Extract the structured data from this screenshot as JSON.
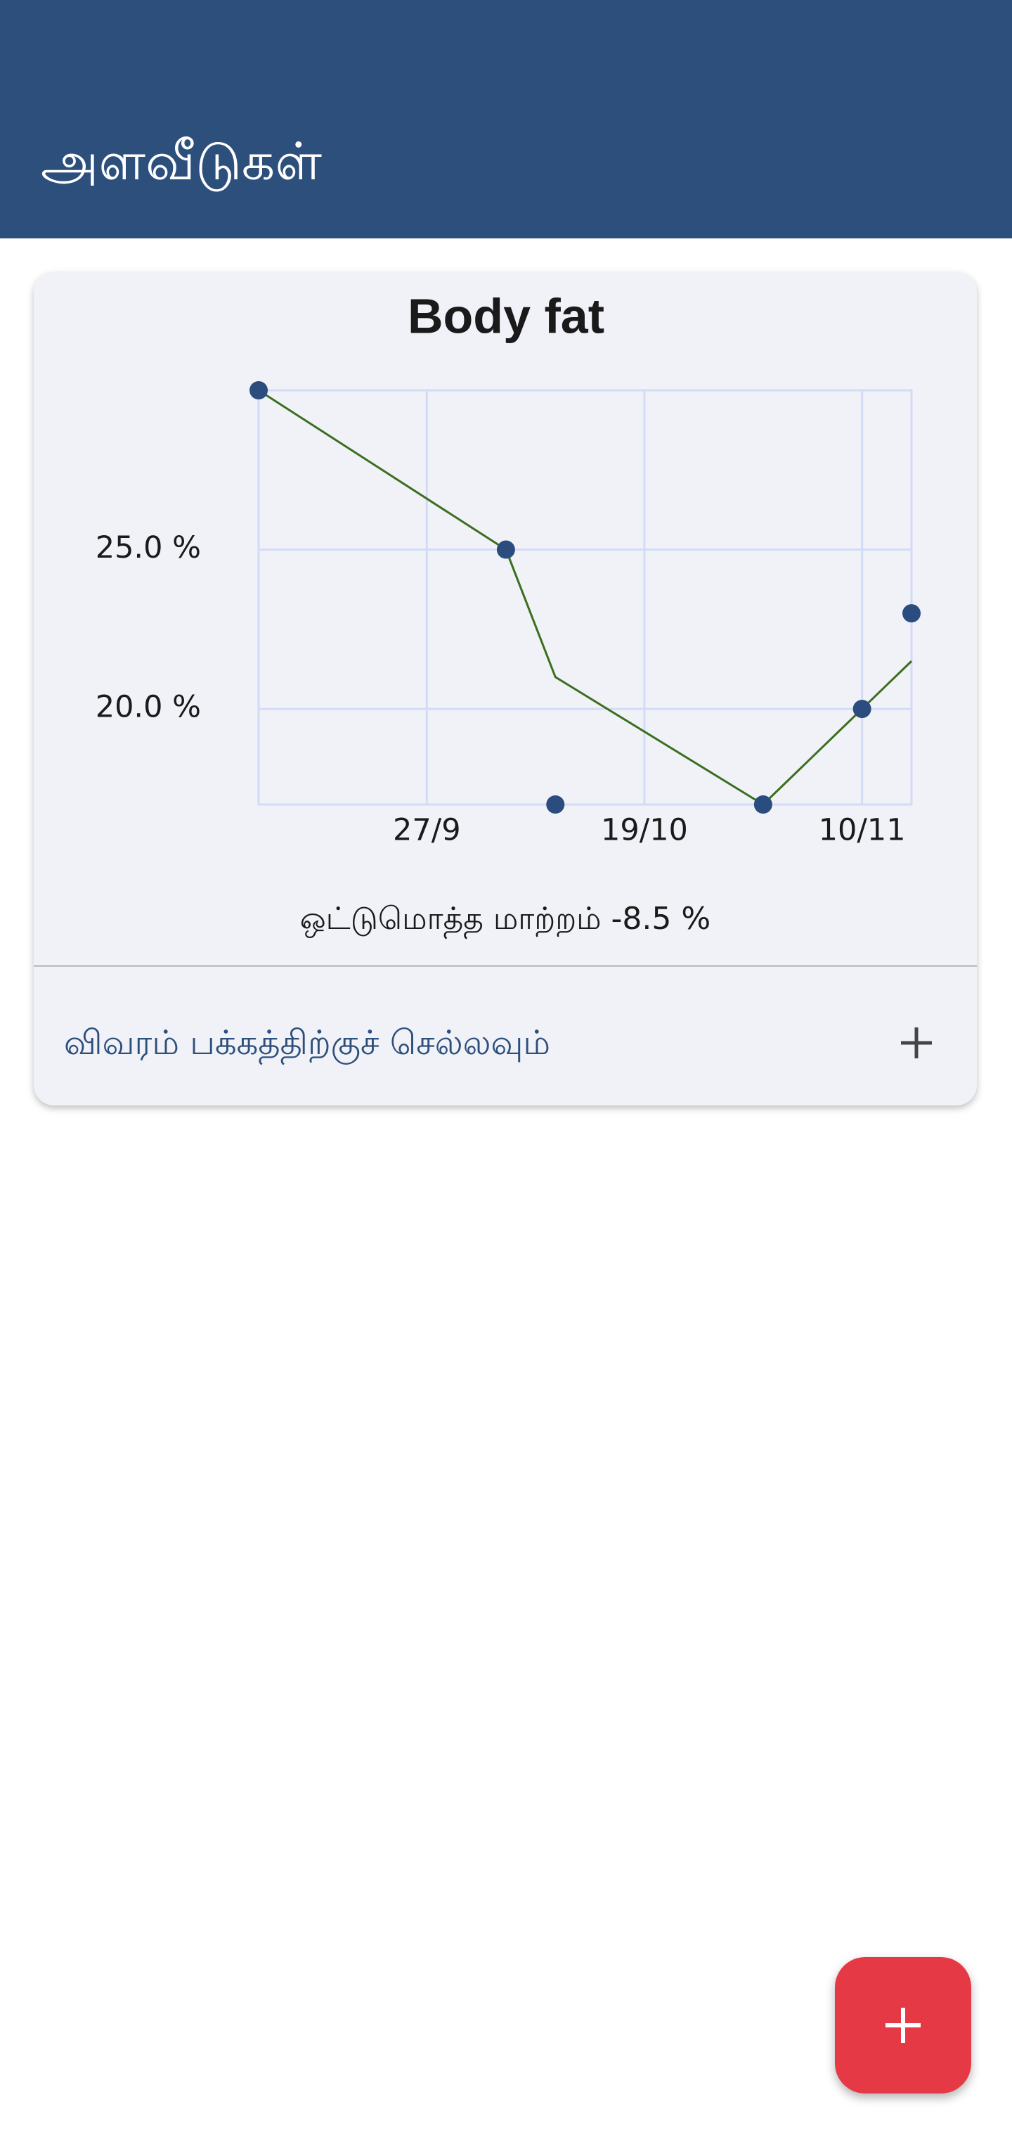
{
  "header": {
    "title": "அளவீடுகள்"
  },
  "card": {
    "chart_data": {
      "type": "line",
      "title": "Body fat",
      "x": [
        "10/9",
        "5/10",
        "10/10",
        "31/10",
        "10/11",
        "15/11"
      ],
      "series": [
        {
          "color": "#2b4c7e",
          "values": [
            30,
            25,
            17,
            17,
            20,
            23
          ],
          "markers": true,
          "line": false
        },
        {
          "color": "#3b6e1e",
          "values": [
            30,
            25,
            21,
            17,
            20,
            21.5
          ],
          "markers": false,
          "line": true
        }
      ],
      "xlim": [
        "10/9",
        "15/11"
      ],
      "xticks": [
        "27/9",
        "19/10",
        "10/11"
      ],
      "ylim": [
        17,
        30
      ],
      "yticks": [
        {
          "value": 25,
          "label": "25.0 %"
        },
        {
          "value": 20,
          "label": "20.0 %"
        }
      ],
      "grid": true
    },
    "summary": "ஒட்டுமொத்த மாற்றம் -8.5 %",
    "link": "விவரம் பக்கத்திற்குச் செல்லவும்"
  }
}
